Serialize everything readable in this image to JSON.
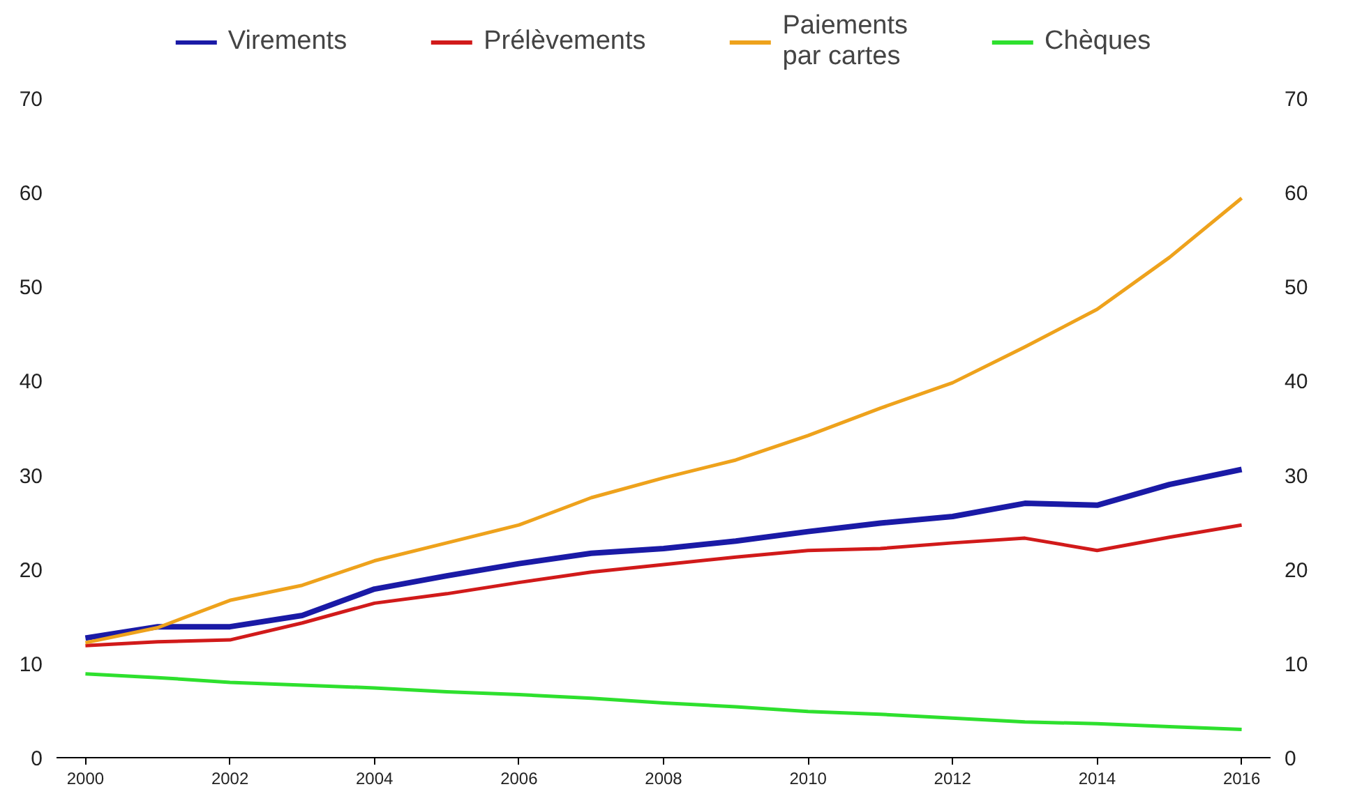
{
  "chart_data": {
    "type": "line",
    "x": [
      2000,
      2001,
      2002,
      2003,
      2004,
      2005,
      2006,
      2007,
      2008,
      2009,
      2010,
      2011,
      2012,
      2013,
      2014,
      2015,
      2016
    ],
    "series": [
      {
        "name": "Virements",
        "color": "#1a1aa6",
        "values": [
          12.7,
          13.9,
          13.9,
          15.1,
          17.9,
          19.3,
          20.6,
          21.7,
          22.2,
          23.0,
          24.0,
          24.9,
          25.6,
          27.0,
          26.8,
          29.0,
          30.6
        ]
      },
      {
        "name": "Prélèvements",
        "color": "#d11a1a",
        "values": [
          11.9,
          12.3,
          12.5,
          14.3,
          16.4,
          17.4,
          18.6,
          19.7,
          20.5,
          21.3,
          22.0,
          22.2,
          22.8,
          23.3,
          22.0,
          23.4,
          24.7
        ]
      },
      {
        "name": "Paiements\npar cartes",
        "color": "#eea21c",
        "values": [
          12.2,
          13.8,
          16.7,
          18.3,
          20.9,
          22.8,
          24.7,
          27.6,
          29.7,
          31.6,
          34.2,
          37.1,
          39.8,
          43.6,
          47.6,
          53.1,
          59.4
        ]
      },
      {
        "name": "Chèques",
        "color": "#2ee02e",
        "values": [
          8.9,
          8.5,
          8.0,
          7.7,
          7.4,
          7.0,
          6.7,
          6.3,
          5.8,
          5.4,
          4.9,
          4.6,
          4.2,
          3.8,
          3.6,
          3.3,
          3.0
        ]
      }
    ],
    "xlim": [
      1999.6,
      2016.4
    ],
    "xticks": [
      2000,
      2002,
      2004,
      2006,
      2008,
      2010,
      2012,
      2014,
      2016
    ],
    "ylim": [
      0,
      70
    ],
    "yticks": [
      0,
      10,
      20,
      30,
      40,
      50,
      60,
      70
    ],
    "y2lim": [
      0,
      70
    ],
    "y2ticks": [
      0,
      10,
      20,
      30,
      40,
      50,
      60,
      70
    ],
    "grid": false,
    "legend": "top",
    "line_style": "solid",
    "marker": "none"
  }
}
